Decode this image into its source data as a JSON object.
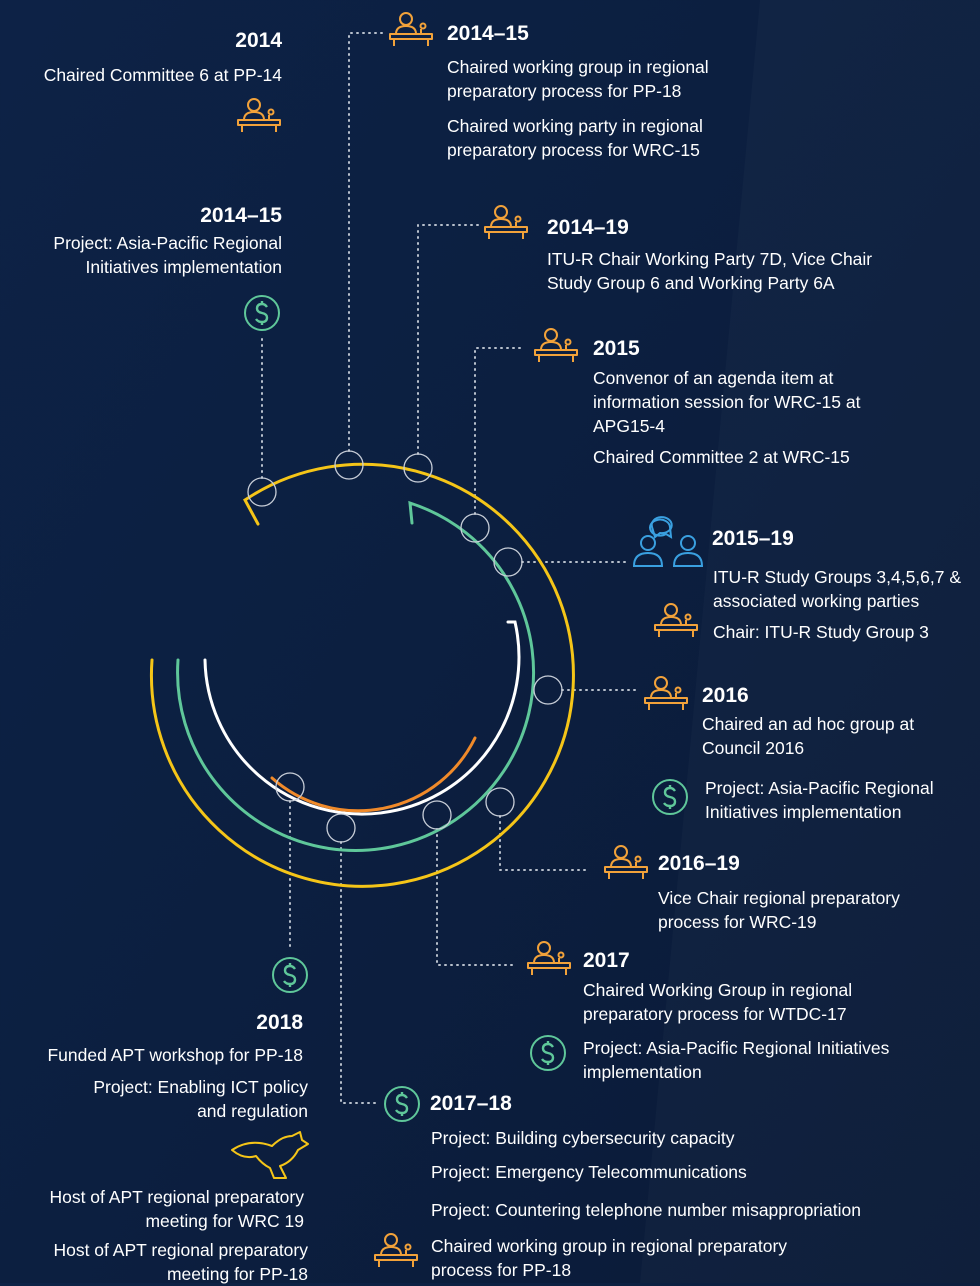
{
  "entries": [
    {
      "year": "2014",
      "items": [
        "Chaired Committee 6 at PP-14"
      ]
    },
    {
      "year": "2014–15",
      "items": [
        "Project: Asia-Pacific Regional Initiatives implementation"
      ]
    },
    {
      "year": "2014–15",
      "items": [
        "Chaired working group in regional preparatory process for PP-18",
        "Chaired working party in regional preparatory process for WRC-15"
      ]
    },
    {
      "year": "2014–19",
      "items": [
        "ITU-R Chair Working Party 7D, Vice Chair Study Group 6 and Working Party 6A"
      ]
    },
    {
      "year": "2015",
      "items": [
        "Convenor of an agenda item at information session for WRC-15 at APG15-4",
        "Chaired Committee 2 at WRC-15"
      ]
    },
    {
      "year": "2015–19",
      "items": [
        "ITU-R Study Groups 3,4,5,6,7 & associated working parties",
        "Chair: ITU-R Study Group 3"
      ]
    },
    {
      "year": "2016",
      "items": [
        "Chaired an ad hoc group at Council 2016",
        "Project: Asia-Pacific Regional Initiatives implementation"
      ]
    },
    {
      "year": "2016–19",
      "items": [
        "Vice Chair regional preparatory process for WRC-19"
      ]
    },
    {
      "year": "2017",
      "items": [
        "Chaired Working Group in regional preparatory process for WTDC-17",
        "Project: Asia-Pacific Regional Initiatives implementation"
      ]
    },
    {
      "year": "2017–18",
      "items": [
        "Project: Building cybersecurity capacity",
        "Project: Emergency Telecommunications",
        "Project: Countering telephone number misappropriation",
        "Chaired working group in regional preparatory process for PP-18"
      ]
    },
    {
      "year": "2018",
      "items": [
        "Funded APT workshop for PP-18",
        "Project: Enabling ICT policy and regulation",
        "Host of APT regional preparatory meeting for WRC 19",
        "Host of APT regional preparatory meeting for PP-18"
      ]
    }
  ]
}
